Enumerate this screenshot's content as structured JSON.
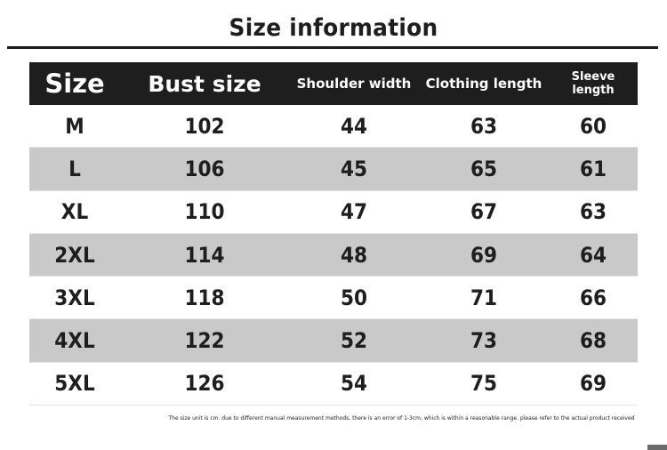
{
  "title": "Size information",
  "table": {
    "headers": [
      "Size",
      "Bust size",
      "Shoulder width",
      "Clothing length",
      "Sleeve length"
    ],
    "rows": [
      [
        "M",
        "102",
        "44",
        "63",
        "60"
      ],
      [
        "L",
        "106",
        "45",
        "65",
        "61"
      ],
      [
        "XL",
        "110",
        "47",
        "67",
        "63"
      ],
      [
        "2XL",
        "114",
        "48",
        "69",
        "64"
      ],
      [
        "3XL",
        "118",
        "50",
        "71",
        "66"
      ],
      [
        "4XL",
        "122",
        "52",
        "73",
        "68"
      ],
      [
        "5XL",
        "126",
        "54",
        "75",
        "69"
      ]
    ]
  },
  "note": "The size unit is cm. due to different manual measurement methods, there is an error of 1-3cm, which is within a reasonable range. please refer to the actual product received",
  "colors": {
    "header_bg": "#1e1e1e",
    "stripe": "#c9c9c9"
  }
}
